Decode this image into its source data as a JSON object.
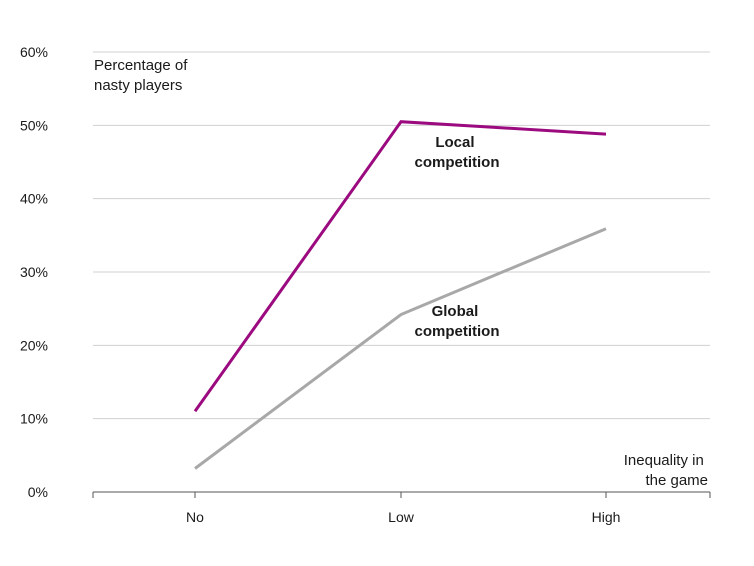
{
  "chart_data": {
    "type": "line",
    "categories": [
      "No",
      "Low",
      "High"
    ],
    "series": [
      {
        "name": "Local competition",
        "label_lines": [
          "Local",
          "competition"
        ],
        "values": [
          11,
          50.5,
          48.8
        ],
        "color": "#9b0a7f"
      },
      {
        "name": "Global competition",
        "label_lines": [
          "Global",
          "competition"
        ],
        "values": [
          3.2,
          24.2,
          35.9
        ],
        "color": "#a8a8a8"
      }
    ],
    "ylabel_lines": [
      "Percentage of",
      "nasty players"
    ],
    "xlabel_lines": [
      "Inequality in",
      "the game"
    ],
    "ylim": [
      0,
      60
    ],
    "yticks": [
      0,
      10,
      20,
      30,
      40,
      50,
      60
    ],
    "ytick_labels": [
      "0%",
      "10%",
      "20%",
      "30%",
      "40%",
      "50%",
      "60%"
    ],
    "grid": true,
    "legend": "inline labels"
  }
}
